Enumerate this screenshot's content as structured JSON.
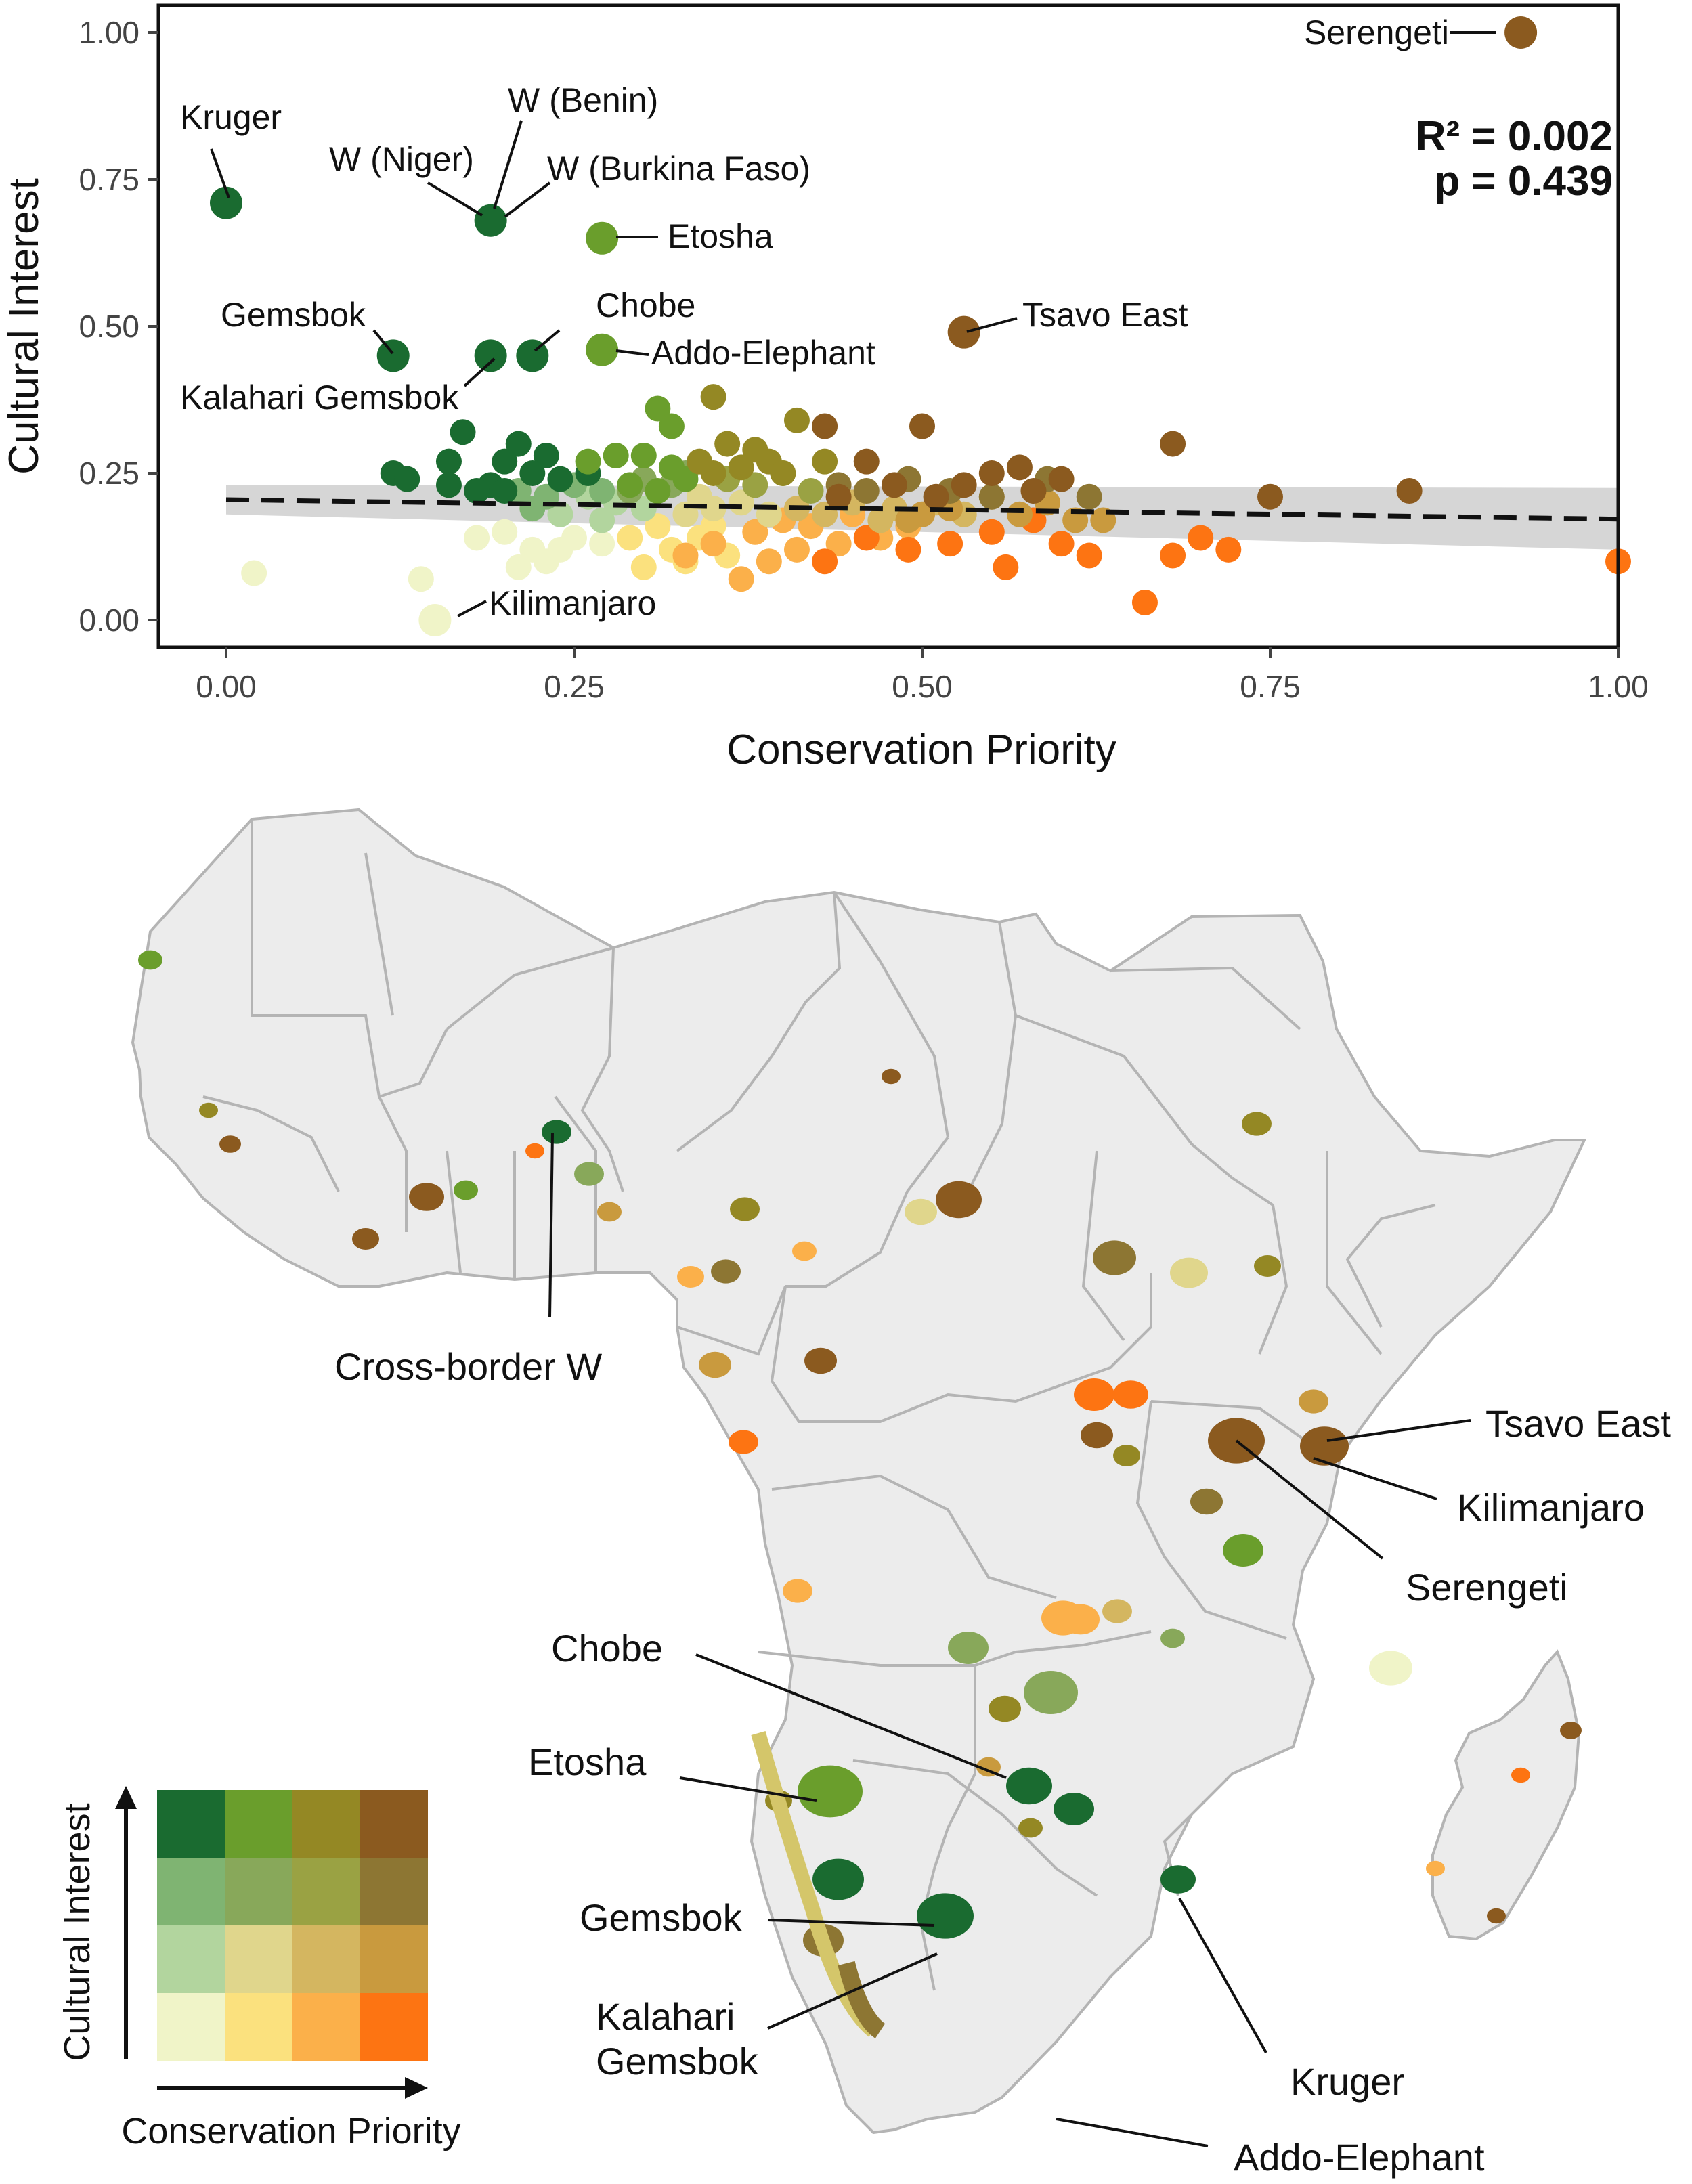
{
  "chart_data": {
    "type": "scatter",
    "xlabel": "Conservation Priority",
    "ylabel": "Cultural Interest",
    "xlim": [
      0,
      1
    ],
    "ylim": [
      0,
      1
    ],
    "x_ticks": [
      "0.00",
      "0.25",
      "0.50",
      "0.75",
      "1.00"
    ],
    "y_ticks": [
      "0.00",
      "0.25",
      "0.50",
      "0.75",
      "1.00"
    ],
    "stats": {
      "r2": "R² = 0.002",
      "p": "p = 0.439"
    },
    "trend": {
      "style": "dashed",
      "y_at_x0": 0.205,
      "y_at_x1": 0.172,
      "ci_at_x0": [
        0.18,
        0.23
      ],
      "ci_at_x1": [
        0.12,
        0.225
      ]
    },
    "labeled_points": [
      {
        "name": "Serengeti",
        "x": 0.93,
        "y": 1.0,
        "color": "#8b5a1f"
      },
      {
        "name": "Kruger",
        "x": 0.0,
        "y": 0.71,
        "color": "#1a6b30"
      },
      {
        "name": "W (Benin)",
        "x": 0.19,
        "y": 0.68,
        "color": "#1a6b30"
      },
      {
        "name": "W (Niger)",
        "x": 0.19,
        "y": 0.68,
        "color": "#1a6b30"
      },
      {
        "name": "W (Burkina Faso)",
        "x": 0.19,
        "y": 0.68,
        "color": "#1a6b30"
      },
      {
        "name": "Etosha",
        "x": 0.27,
        "y": 0.65,
        "color": "#6a9e2c"
      },
      {
        "name": "Tsavo East",
        "x": 0.53,
        "y": 0.49,
        "color": "#8b5a1f"
      },
      {
        "name": "Gemsbok",
        "x": 0.12,
        "y": 0.45,
        "color": "#1a6b30"
      },
      {
        "name": "Kalahari Gemsbok",
        "x": 0.19,
        "y": 0.45,
        "color": "#1a6b30"
      },
      {
        "name": "Chobe",
        "x": 0.22,
        "y": 0.45,
        "color": "#1a6b30"
      },
      {
        "name": "Addo-Elephant",
        "x": 0.27,
        "y": 0.46,
        "color": "#6a9e2c"
      },
      {
        "name": "Kilimanjaro",
        "x": 0.15,
        "y": 0.0,
        "color": "#f0f4c8"
      }
    ],
    "points": [
      [
        0.02,
        0.08,
        "#f0f4c8"
      ],
      [
        0.14,
        0.07,
        "#f0f4c8"
      ],
      [
        0.18,
        0.14,
        "#f0f4c8"
      ],
      [
        0.2,
        0.15,
        "#f0f4c8"
      ],
      [
        0.22,
        0.12,
        "#f0f4c8"
      ],
      [
        0.23,
        0.1,
        "#f0f4c8"
      ],
      [
        0.25,
        0.14,
        "#f0f4c8"
      ],
      [
        0.27,
        0.13,
        "#f0f4c8"
      ],
      [
        0.21,
        0.09,
        "#f0f4c8"
      ],
      [
        0.24,
        0.12,
        "#f0f4c8"
      ],
      [
        0.3,
        0.09,
        "#fbe17e"
      ],
      [
        0.32,
        0.12,
        "#fbe17e"
      ],
      [
        0.34,
        0.14,
        "#fbe17e"
      ],
      [
        0.31,
        0.16,
        "#fbe17e"
      ],
      [
        0.29,
        0.14,
        "#fbe17e"
      ],
      [
        0.36,
        0.11,
        "#fbe17e"
      ],
      [
        0.33,
        0.1,
        "#fbe17e"
      ],
      [
        0.35,
        0.16,
        "#fbe17e"
      ],
      [
        0.37,
        0.07,
        "#fbb04a"
      ],
      [
        0.39,
        0.1,
        "#fbb04a"
      ],
      [
        0.41,
        0.12,
        "#fbb04a"
      ],
      [
        0.38,
        0.15,
        "#fbb04a"
      ],
      [
        0.42,
        0.16,
        "#fbb04a"
      ],
      [
        0.44,
        0.13,
        "#fbb04a"
      ],
      [
        0.35,
        0.13,
        "#fbb04a"
      ],
      [
        0.4,
        0.17,
        "#fbb04a"
      ],
      [
        0.47,
        0.14,
        "#fbb04a"
      ],
      [
        0.49,
        0.16,
        "#fbb04a"
      ],
      [
        0.33,
        0.11,
        "#fbb04a"
      ],
      [
        0.45,
        0.18,
        "#fbb04a"
      ],
      [
        0.43,
        0.1,
        "#fd7412"
      ],
      [
        0.46,
        0.14,
        "#fd7412"
      ],
      [
        0.52,
        0.13,
        "#fd7412"
      ],
      [
        0.55,
        0.15,
        "#fd7412"
      ],
      [
        0.56,
        0.09,
        "#fd7412"
      ],
      [
        0.6,
        0.13,
        "#fd7412"
      ],
      [
        0.62,
        0.11,
        "#fd7412"
      ],
      [
        0.66,
        0.03,
        "#fd7412"
      ],
      [
        0.68,
        0.11,
        "#fd7412"
      ],
      [
        0.7,
        0.14,
        "#fd7412"
      ],
      [
        0.72,
        0.12,
        "#fd7412"
      ],
      [
        1.0,
        0.1,
        "#fd7412"
      ],
      [
        0.58,
        0.17,
        "#fd7412"
      ],
      [
        0.49,
        0.12,
        "#fd7412"
      ],
      [
        0.26,
        0.21,
        "#b2d59e"
      ],
      [
        0.28,
        0.2,
        "#b2d59e"
      ],
      [
        0.3,
        0.19,
        "#b2d59e"
      ],
      [
        0.27,
        0.17,
        "#b2d59e"
      ],
      [
        0.24,
        0.18,
        "#b2d59e"
      ],
      [
        0.33,
        0.18,
        "#e0d68c"
      ],
      [
        0.35,
        0.19,
        "#e0d68c"
      ],
      [
        0.37,
        0.2,
        "#e0d68c"
      ],
      [
        0.39,
        0.18,
        "#e0d68c"
      ],
      [
        0.34,
        0.21,
        "#e0d68c"
      ],
      [
        0.41,
        0.19,
        "#d4b660"
      ],
      [
        0.43,
        0.18,
        "#d4b660"
      ],
      [
        0.45,
        0.2,
        "#d4b660"
      ],
      [
        0.47,
        0.17,
        "#d4b660"
      ],
      [
        0.48,
        0.19,
        "#d4b660"
      ],
      [
        0.51,
        0.2,
        "#d4b660"
      ],
      [
        0.53,
        0.18,
        "#d4b660"
      ],
      [
        0.49,
        0.17,
        "#c99a3e"
      ],
      [
        0.52,
        0.19,
        "#c99a3e"
      ],
      [
        0.55,
        0.21,
        "#c99a3e"
      ],
      [
        0.57,
        0.18,
        "#c99a3e"
      ],
      [
        0.59,
        0.2,
        "#c99a3e"
      ],
      [
        0.61,
        0.17,
        "#c99a3e"
      ],
      [
        0.63,
        0.17,
        "#c99a3e"
      ],
      [
        0.5,
        0.18,
        "#c99a3e"
      ],
      [
        0.21,
        0.22,
        "#7fb472"
      ],
      [
        0.23,
        0.21,
        "#7fb472"
      ],
      [
        0.25,
        0.23,
        "#7fb472"
      ],
      [
        0.22,
        0.19,
        "#7fb472"
      ],
      [
        0.27,
        0.22,
        "#7fb472"
      ],
      [
        0.3,
        0.24,
        "#88a85a"
      ],
      [
        0.32,
        0.23,
        "#88a85a"
      ],
      [
        0.33,
        0.25,
        "#88a85a"
      ],
      [
        0.29,
        0.22,
        "#88a85a"
      ],
      [
        0.36,
        0.24,
        "#9aa243"
      ],
      [
        0.38,
        0.23,
        "#9aa243"
      ],
      [
        0.4,
        0.25,
        "#9aa243"
      ],
      [
        0.42,
        0.22,
        "#9aa243"
      ],
      [
        0.44,
        0.23,
        "#8d7633"
      ],
      [
        0.46,
        0.22,
        "#8d7633"
      ],
      [
        0.49,
        0.24,
        "#8d7633"
      ],
      [
        0.52,
        0.22,
        "#8d7633"
      ],
      [
        0.55,
        0.21,
        "#8d7633"
      ],
      [
        0.59,
        0.24,
        "#8d7633"
      ],
      [
        0.62,
        0.21,
        "#8d7633"
      ],
      [
        0.17,
        0.32,
        "#1a6b30"
      ],
      [
        0.21,
        0.3,
        "#1a6b30"
      ],
      [
        0.23,
        0.28,
        "#1a6b30"
      ],
      [
        0.2,
        0.27,
        "#1a6b30"
      ],
      [
        0.16,
        0.27,
        "#1a6b30"
      ],
      [
        0.22,
        0.25,
        "#1a6b30"
      ],
      [
        0.24,
        0.24,
        "#1a6b30"
      ],
      [
        0.19,
        0.23,
        "#1a6b30"
      ],
      [
        0.16,
        0.23,
        "#1a6b30"
      ],
      [
        0.12,
        0.25,
        "#1a6b30"
      ],
      [
        0.13,
        0.24,
        "#1a6b30"
      ],
      [
        0.18,
        0.22,
        "#1a6b30"
      ],
      [
        0.2,
        0.22,
        "#1a6b30"
      ],
      [
        0.26,
        0.25,
        "#1a6b30"
      ],
      [
        0.31,
        0.36,
        "#6a9e2c"
      ],
      [
        0.32,
        0.33,
        "#6a9e2c"
      ],
      [
        0.28,
        0.28,
        "#6a9e2c"
      ],
      [
        0.3,
        0.28,
        "#6a9e2c"
      ],
      [
        0.32,
        0.26,
        "#6a9e2c"
      ],
      [
        0.33,
        0.24,
        "#6a9e2c"
      ],
      [
        0.29,
        0.23,
        "#6a9e2c"
      ],
      [
        0.31,
        0.22,
        "#6a9e2c"
      ],
      [
        0.26,
        0.27,
        "#6a9e2c"
      ],
      [
        0.35,
        0.38,
        "#948824"
      ],
      [
        0.36,
        0.3,
        "#948824"
      ],
      [
        0.38,
        0.29,
        "#948824"
      ],
      [
        0.41,
        0.34,
        "#948824"
      ],
      [
        0.39,
        0.27,
        "#948824"
      ],
      [
        0.37,
        0.26,
        "#948824"
      ],
      [
        0.4,
        0.25,
        "#948824"
      ],
      [
        0.35,
        0.25,
        "#948824"
      ],
      [
        0.43,
        0.27,
        "#948824"
      ],
      [
        0.34,
        0.27,
        "#948824"
      ],
      [
        0.43,
        0.33,
        "#8b5a1f"
      ],
      [
        0.46,
        0.27,
        "#8b5a1f"
      ],
      [
        0.5,
        0.33,
        "#8b5a1f"
      ],
      [
        0.51,
        0.21,
        "#8b5a1f"
      ],
      [
        0.53,
        0.23,
        "#8b5a1f"
      ],
      [
        0.55,
        0.25,
        "#8b5a1f"
      ],
      [
        0.57,
        0.26,
        "#8b5a1f"
      ],
      [
        0.58,
        0.22,
        "#8b5a1f"
      ],
      [
        0.6,
        0.24,
        "#8b5a1f"
      ],
      [
        0.68,
        0.3,
        "#8b5a1f"
      ],
      [
        0.75,
        0.21,
        "#8b5a1f"
      ],
      [
        0.85,
        0.22,
        "#8b5a1f"
      ],
      [
        0.44,
        0.21,
        "#8b5a1f"
      ],
      [
        0.48,
        0.23,
        "#8b5a1f"
      ]
    ]
  },
  "map": {
    "region": "Africa",
    "labels": {
      "cross_border_w": "Cross-border W",
      "tsavo_east": "Tsavo East",
      "kilimanjaro": "Kilimanjaro",
      "serengeti": "Serengeti",
      "chobe": "Chobe",
      "etosha": "Etosha",
      "gemsbok": "Gemsbok",
      "kalahari_1": "Kalahari",
      "kalahari_2": "Gemsbok",
      "kruger": "Kruger",
      "addo": "Addo-Elephant"
    },
    "land_color": "#ececec",
    "border_color": "#b4b4b4"
  },
  "legend": {
    "y_title": "Cultural Interest",
    "x_title": "Conservation Priority",
    "grid_rows": [
      [
        "#1a6b30",
        "#6a9e2c",
        "#948824",
        "#8b5a1f"
      ],
      [
        "#7fb472",
        "#88a85a",
        "#9aa243",
        "#8d7633"
      ],
      [
        "#b2d59e",
        "#e0d68c",
        "#d4b660",
        "#c99a3e"
      ],
      [
        "#f0f4c8",
        "#fbe17e",
        "#fbb04a",
        "#fd7412"
      ]
    ]
  }
}
